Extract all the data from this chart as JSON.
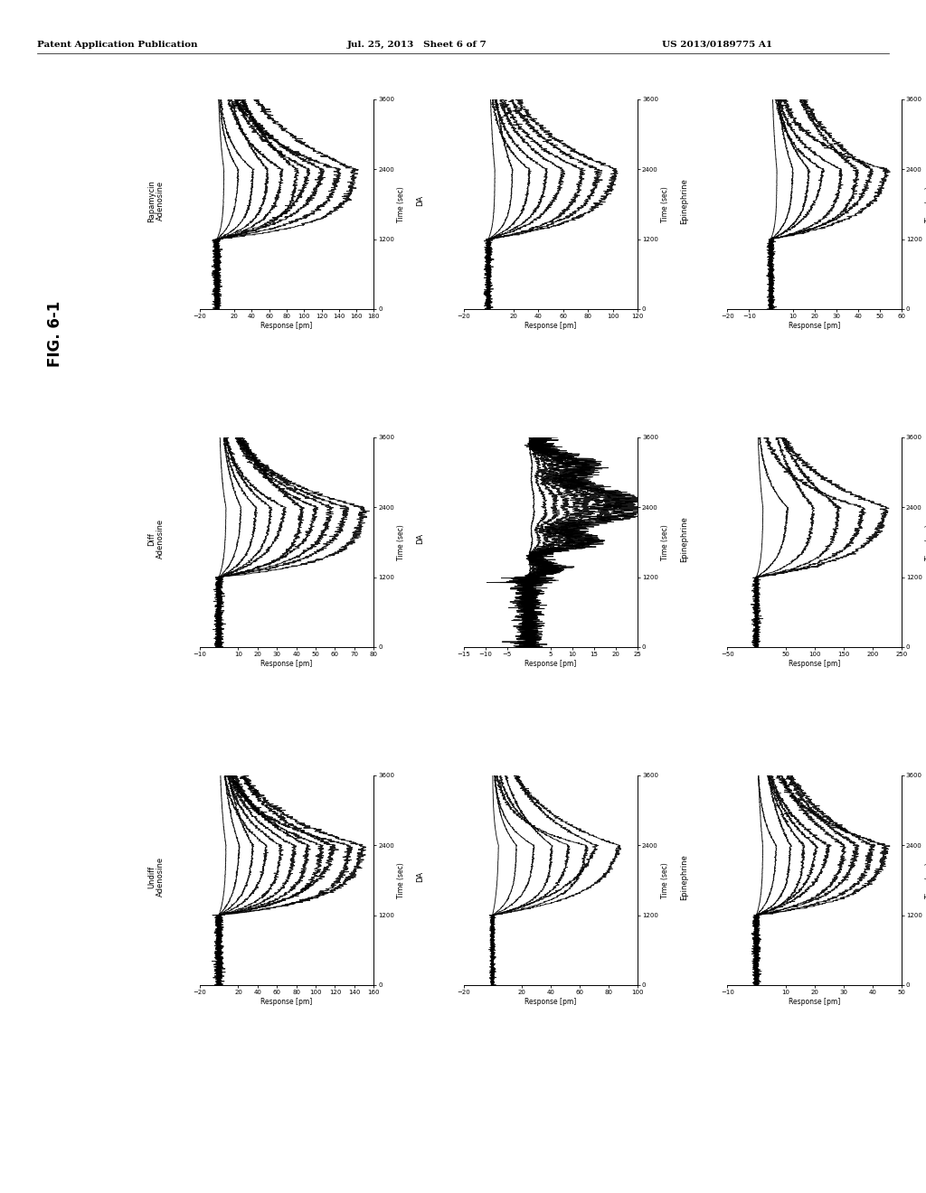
{
  "page_header_left": "Patent Application Publication",
  "page_header_center": "Jul. 25, 2013   Sheet 6 of 7",
  "page_header_right": "US 2013/0189775 A1",
  "figure_label": "FIG. 6-1",
  "background_color": "#ffffff",
  "subplots": [
    {
      "row": 0,
      "col": 0,
      "label1": "Rapamycin",
      "label2": "Adenosine",
      "xlabel": "Response [pm]",
      "ylabel": "Time (sec)",
      "xlim": [
        -20,
        180
      ],
      "ylim": [
        0,
        3600
      ],
      "xticks": [
        -20,
        20,
        40,
        60,
        80,
        100,
        120,
        140,
        160,
        180
      ],
      "yticks": [
        0,
        1200,
        2400,
        3600
      ],
      "n_curves": 10,
      "curve_type": "standard",
      "max_resp": 160
    },
    {
      "row": 0,
      "col": 1,
      "label1": "DA",
      "label2": "",
      "xlabel": "Response [pm]",
      "ylabel": "Time (sec)",
      "xlim": [
        -20,
        120
      ],
      "ylim": [
        0,
        3600
      ],
      "xticks": [
        -20,
        20,
        40,
        60,
        80,
        100,
        120
      ],
      "yticks": [
        0,
        1200,
        2400,
        3600
      ],
      "n_curves": 8,
      "curve_type": "standard",
      "max_resp": 105
    },
    {
      "row": 0,
      "col": 2,
      "label1": "Epinephrine",
      "label2": "",
      "xlabel": "Response [pm]",
      "ylabel": "Time (sec)",
      "xlim": [
        -20,
        60
      ],
      "ylim": [
        0,
        3600
      ],
      "xticks": [
        -20,
        -10,
        10,
        20,
        30,
        40,
        50,
        60
      ],
      "yticks": [
        0,
        1200,
        2400,
        3600
      ],
      "n_curves": 8,
      "curve_type": "standard",
      "max_resp": 55
    },
    {
      "row": 1,
      "col": 0,
      "label1": "Diff",
      "label2": "Adenosine",
      "xlabel": "Response [pm]",
      "ylabel": "Time (sec)",
      "xlim": [
        -10,
        80
      ],
      "ylim": [
        0,
        3600
      ],
      "xticks": [
        -10,
        10,
        20,
        30,
        40,
        50,
        60,
        70,
        80
      ],
      "yticks": [
        0,
        1200,
        2400,
        3600
      ],
      "n_curves": 10,
      "curve_type": "standard",
      "max_resp": 75
    },
    {
      "row": 1,
      "col": 1,
      "label1": "DA",
      "label2": "",
      "xlabel": "Response [pm]",
      "ylabel": "Time (sec)",
      "xlim": [
        -15,
        25
      ],
      "ylim": [
        0,
        3600
      ],
      "xticks": [
        -15,
        -10,
        -5,
        5,
        10,
        15,
        20,
        25
      ],
      "yticks": [
        0,
        1200,
        2400,
        3600
      ],
      "n_curves": 10,
      "curve_type": "diff_da",
      "max_resp": 22
    },
    {
      "row": 1,
      "col": 2,
      "label1": "Epinephrine",
      "label2": "",
      "xlabel": "Response [pm]",
      "ylabel": "Time (sec)",
      "xlim": [
        -50,
        250
      ],
      "ylim": [
        0,
        3600
      ],
      "xticks": [
        -50,
        50,
        100,
        150,
        200,
        250
      ],
      "yticks": [
        0,
        1200,
        2400,
        3600
      ],
      "n_curves": 6,
      "curve_type": "standard",
      "max_resp": 230
    },
    {
      "row": 2,
      "col": 0,
      "label1": "Undiff",
      "label2": "Adenosine",
      "xlabel": "Response [pm]",
      "ylabel": "Time (sec)",
      "xlim": [
        -20,
        160
      ],
      "ylim": [
        0,
        3600
      ],
      "xticks": [
        -20,
        20,
        40,
        60,
        80,
        100,
        120,
        140,
        160
      ],
      "yticks": [
        0,
        1200,
        2400,
        3600
      ],
      "n_curves": 11,
      "curve_type": "standard",
      "max_resp": 150
    },
    {
      "row": 2,
      "col": 1,
      "label1": "DA",
      "label2": "",
      "xlabel": "Response [pm]",
      "ylabel": "Time (sec)",
      "xlim": [
        -20,
        100
      ],
      "ylim": [
        0,
        3600
      ],
      "xticks": [
        -20,
        20,
        40,
        60,
        80,
        100
      ],
      "yticks": [
        0,
        1200,
        2400,
        3600
      ],
      "n_curves": 8,
      "curve_type": "undiff_da",
      "max_resp": 90
    },
    {
      "row": 2,
      "col": 2,
      "label1": "Epinephrine",
      "label2": "",
      "xlabel": "Response [pm]",
      "ylabel": "Time (sec)",
      "xlim": [
        -10,
        50
      ],
      "ylim": [
        0,
        3600
      ],
      "xticks": [
        -10,
        10,
        20,
        30,
        40,
        50
      ],
      "yticks": [
        0,
        1200,
        2400,
        3600
      ],
      "n_curves": 10,
      "curve_type": "standard",
      "max_resp": 45
    }
  ]
}
